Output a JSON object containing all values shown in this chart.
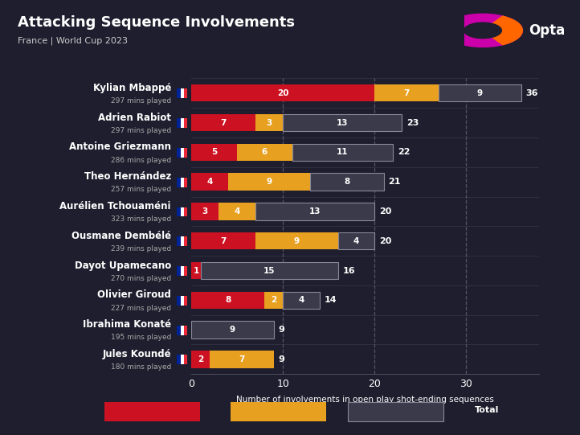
{
  "title": "Attacking Sequence Involvements",
  "subtitle": "France | World Cup 2023",
  "xlabel": "Number of involvements in open play shot-ending sequences",
  "bg_color": "#1e1e2e",
  "players": [
    {
      "name": "Kylian Mbappé",
      "mins": "297 mins played",
      "shot": 20,
      "chance": 7,
      "buildup": 9,
      "total": 36
    },
    {
      "name": "Adrien Rabiot",
      "mins": "297 mins played",
      "shot": 7,
      "chance": 3,
      "buildup": 13,
      "total": 23
    },
    {
      "name": "Antoine Griezmann",
      "mins": "286 mins played",
      "shot": 5,
      "chance": 6,
      "buildup": 11,
      "total": 22
    },
    {
      "name": "Theo Hernández",
      "mins": "257 mins played",
      "shot": 4,
      "chance": 9,
      "buildup": 8,
      "total": 21
    },
    {
      "name": "Aurélien Tchouaméni",
      "mins": "323 mins played",
      "shot": 3,
      "chance": 4,
      "buildup": 13,
      "total": 20
    },
    {
      "name": "Ousmane Dembélé",
      "mins": "239 mins played",
      "shot": 7,
      "chance": 9,
      "buildup": 4,
      "total": 20
    },
    {
      "name": "Dayot Upamecano",
      "mins": "270 mins played",
      "shot": 1,
      "chance": 0,
      "buildup": 15,
      "total": 16
    },
    {
      "name": "Olivier Giroud",
      "mins": "227 mins played",
      "shot": 8,
      "chance": 2,
      "buildup": 4,
      "total": 14
    },
    {
      "name": "Ibrahima Konaté",
      "mins": "195 mins played",
      "shot": 0,
      "chance": 0,
      "buildup": 9,
      "total": 9
    },
    {
      "name": "Jules Koundé",
      "mins": "180 mins played",
      "shot": 2,
      "chance": 7,
      "buildup": 0,
      "total": 9
    }
  ],
  "color_shot": "#cc1122",
  "color_chance": "#e8a020",
  "color_buildup": "#3a3a4a",
  "color_buildup_edge": "#888899",
  "color_text": "#ffffff",
  "color_subtext": "#aaaaaa",
  "color_grid": "#555566",
  "color_sep": "#333344",
  "xlim": [
    0,
    38
  ],
  "xticks": [
    0,
    10,
    20,
    30
  ],
  "bar_height": 0.58,
  "label_fontsize": 7.5,
  "total_fontsize": 8.0,
  "name_fontsize": 8.5,
  "mins_fontsize": 6.5
}
